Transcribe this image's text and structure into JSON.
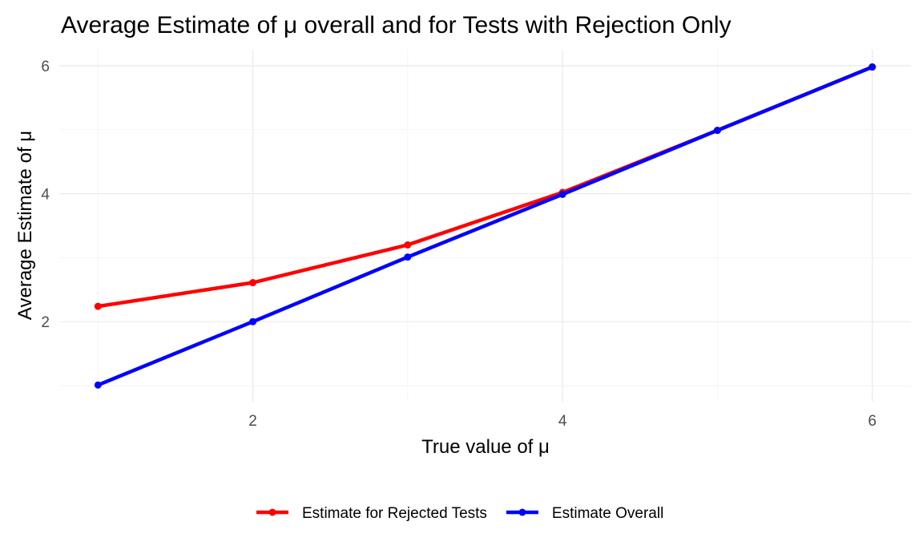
{
  "chart_data": {
    "type": "line",
    "title": "Average Estimate of μ overall and for Tests with Rejection Only",
    "xlabel": "True value of μ",
    "ylabel": "Average Estimate of μ",
    "x": [
      1,
      2,
      3,
      4,
      5,
      6
    ],
    "xlim": [
      0.75,
      6.25
    ],
    "ylim": [
      0.75,
      6.25
    ],
    "x_ticks": [
      2,
      4,
      6
    ],
    "y_ticks": [
      2,
      4,
      6
    ],
    "x_minor": [
      1,
      3,
      5
    ],
    "y_minor": [
      1,
      3,
      5
    ],
    "grid": true,
    "legend_position": "bottom",
    "series": [
      {
        "name": "Estimate for Rejected Tests",
        "color": "#ff0000",
        "values": [
          2.24,
          2.61,
          3.2,
          4.02,
          4.99,
          5.98
        ]
      },
      {
        "name": "Estimate Overall",
        "color": "#0000ff",
        "values": [
          1.01,
          2.0,
          3.01,
          3.99,
          4.99,
          5.98
        ]
      }
    ]
  }
}
